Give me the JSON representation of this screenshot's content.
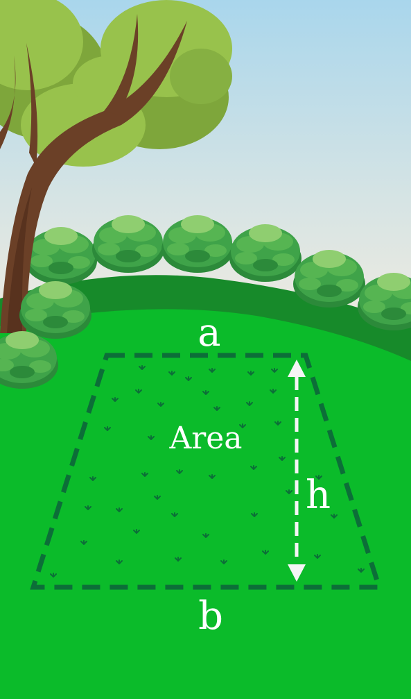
{
  "labels": {
    "top_side": "a",
    "bottom_side": "b",
    "height": "h",
    "area": "Area"
  },
  "colors": {
    "sky_top": "#a9d6ec",
    "sky_bottom": "#f0ebe0",
    "grass": "#0bbb2a",
    "hill_dark": "#178a2a",
    "shape_outline": "#0c6e38",
    "arrow": "#f5f5f5",
    "bush": "#3fa349",
    "bush_light": "#8fce70",
    "foliage": "#98c24c",
    "foliage_dark": "#7ea63b",
    "trunk": "#6b4027"
  }
}
